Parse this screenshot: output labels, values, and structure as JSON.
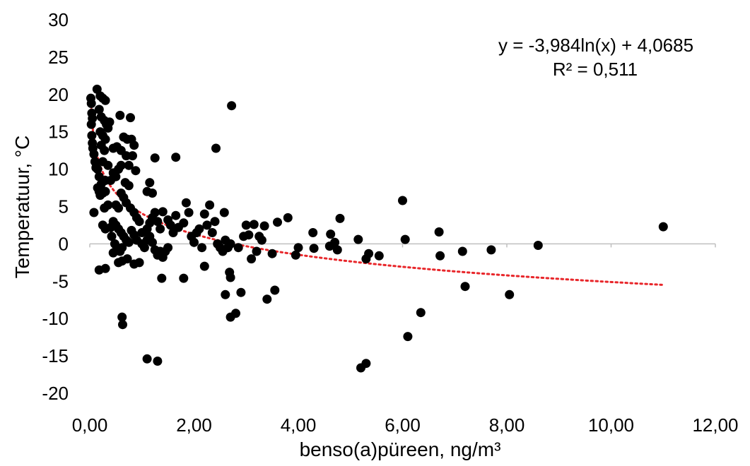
{
  "chart_data": {
    "type": "scatter",
    "xlabel": "benso(a)püreen, ng/m³",
    "ylabel": "Temperatuur, °C",
    "xlim": [
      0,
      12
    ],
    "ylim": [
      -20,
      30
    ],
    "x_ticks": [
      "0,00",
      "2,00",
      "4,00",
      "6,00",
      "8,00",
      "10,00",
      "12,00"
    ],
    "y_ticks": [
      "-20",
      "-15",
      "-10",
      "-5",
      "0",
      "5",
      "10",
      "15",
      "20",
      "25",
      "30"
    ],
    "grid": false,
    "marker_color": "#000000",
    "trendline": {
      "type": "logarithmic",
      "a": -3.984,
      "b": 4.0685,
      "x_range": [
        0.03,
        11.0
      ],
      "color": "#e8262a",
      "equation_label": "y = -3,984ln(x) + 4,0685",
      "r2_label": "R² = 0,511"
    },
    "series": [
      {
        "points": [
          [
            0.02,
            19.5
          ],
          [
            0.03,
            18.8
          ],
          [
            0.04,
            17.5
          ],
          [
            0.05,
            16.8
          ],
          [
            0.03,
            16.0
          ],
          [
            0.04,
            14.5
          ],
          [
            0.05,
            13.5
          ],
          [
            0.06,
            12.8
          ],
          [
            0.08,
            12.0
          ],
          [
            0.1,
            11.0
          ],
          [
            0.12,
            10.2
          ],
          [
            0.15,
            10.0
          ],
          [
            0.08,
            4.2
          ],
          [
            0.15,
            7.5
          ],
          [
            0.18,
            7.0
          ],
          [
            0.2,
            6.5
          ],
          [
            0.25,
            6.8
          ],
          [
            0.3,
            7.0
          ],
          [
            0.28,
            4.8
          ],
          [
            0.35,
            5.2
          ],
          [
            0.18,
            -3.5
          ],
          [
            0.3,
            -3.3
          ],
          [
            0.14,
            20.7
          ],
          [
            0.2,
            19.8
          ],
          [
            0.25,
            19.5
          ],
          [
            0.3,
            19.2
          ],
          [
            0.18,
            18.0
          ],
          [
            0.22,
            17.0
          ],
          [
            0.28,
            16.5
          ],
          [
            0.32,
            16.0
          ],
          [
            0.35,
            15.5
          ],
          [
            0.38,
            16.3
          ],
          [
            0.2,
            15.0
          ],
          [
            0.25,
            14.5
          ],
          [
            0.3,
            14.0
          ],
          [
            0.22,
            13.2
          ],
          [
            0.28,
            12.5
          ],
          [
            0.25,
            11.0
          ],
          [
            0.35,
            10.5
          ],
          [
            0.18,
            9.0
          ],
          [
            0.3,
            8.5
          ],
          [
            0.22,
            8.0
          ],
          [
            0.4,
            8.5
          ],
          [
            0.45,
            9.5
          ],
          [
            0.5,
            9.0
          ],
          [
            0.55,
            10.0
          ],
          [
            0.6,
            10.5
          ],
          [
            0.45,
            12.8
          ],
          [
            0.52,
            13.0
          ],
          [
            0.58,
            17.2
          ],
          [
            0.65,
            14.3
          ],
          [
            0.72,
            14.0
          ],
          [
            0.78,
            16.9
          ],
          [
            0.8,
            14.0
          ],
          [
            0.85,
            13.2
          ],
          [
            0.6,
            12.5
          ],
          [
            0.7,
            11.8
          ],
          [
            0.75,
            10.5
          ],
          [
            0.82,
            11.8
          ],
          [
            0.88,
            9.8
          ],
          [
            0.68,
            8.2
          ],
          [
            0.75,
            7.8
          ],
          [
            0.6,
            6.8
          ],
          [
            0.65,
            6.2
          ],
          [
            0.7,
            5.5
          ],
          [
            0.5,
            5.2
          ],
          [
            0.55,
            4.8
          ],
          [
            0.78,
            4.8
          ],
          [
            0.85,
            4.2
          ],
          [
            0.9,
            3.5
          ],
          [
            0.95,
            3.0
          ],
          [
            0.45,
            3.0
          ],
          [
            0.5,
            2.5
          ],
          [
            0.55,
            2.0
          ],
          [
            0.6,
            1.5
          ],
          [
            0.65,
            1.0
          ],
          [
            0.7,
            0.5
          ],
          [
            0.75,
            0.2
          ],
          [
            0.8,
            1.8
          ],
          [
            0.85,
            1.2
          ],
          [
            0.4,
            2.2
          ],
          [
            0.3,
            2.0
          ],
          [
            0.25,
            2.5
          ],
          [
            0.42,
            1.0
          ],
          [
            0.48,
            0.0
          ],
          [
            0.52,
            -0.5
          ],
          [
            0.58,
            -1.0
          ],
          [
            0.62,
            -0.5
          ],
          [
            0.45,
            -1.2
          ],
          [
            0.55,
            -2.5
          ],
          [
            0.62,
            -2.3
          ],
          [
            0.72,
            -2.0
          ],
          [
            0.85,
            -2.7
          ],
          [
            0.95,
            -2.5
          ],
          [
            0.62,
            -9.8
          ],
          [
            0.63,
            -10.8
          ],
          [
            0.9,
            0.5
          ],
          [
            1.0,
            0.0
          ],
          [
            1.05,
            -0.5
          ],
          [
            1.1,
            0.5
          ],
          [
            1.15,
            1.0
          ],
          [
            1.2,
            0.2
          ],
          [
            1.25,
            -0.8
          ],
          [
            1.3,
            -1.5
          ],
          [
            1.35,
            -1.0
          ],
          [
            1.4,
            -1.8
          ],
          [
            1.45,
            -1.0
          ],
          [
            1.5,
            -0.5
          ],
          [
            1.0,
            1.5
          ],
          [
            1.1,
            2.0
          ],
          [
            1.15,
            2.8
          ],
          [
            1.2,
            3.5
          ],
          [
            1.25,
            4.2
          ],
          [
            1.3,
            3.0
          ],
          [
            1.35,
            2.0
          ],
          [
            1.4,
            4.3
          ],
          [
            1.5,
            3.2
          ],
          [
            1.55,
            2.5
          ],
          [
            1.6,
            1.5
          ],
          [
            1.65,
            3.8
          ],
          [
            1.7,
            2.2
          ],
          [
            1.1,
            7.0
          ],
          [
            1.15,
            8.2
          ],
          [
            1.2,
            6.8
          ],
          [
            1.25,
            11.5
          ],
          [
            1.65,
            11.6
          ],
          [
            1.1,
            -15.4
          ],
          [
            1.3,
            -15.7
          ],
          [
            1.38,
            -4.6
          ],
          [
            1.8,
            -4.6
          ],
          [
            1.8,
            2.8
          ],
          [
            1.85,
            5.5
          ],
          [
            1.9,
            4.2
          ],
          [
            1.95,
            1.0
          ],
          [
            2.0,
            0.2
          ],
          [
            2.05,
            1.5
          ],
          [
            2.1,
            2.0
          ],
          [
            2.15,
            -0.5
          ],
          [
            2.2,
            4.0
          ],
          [
            2.25,
            2.5
          ],
          [
            2.3,
            5.2
          ],
          [
            2.35,
            1.5
          ],
          [
            2.4,
            3.0
          ],
          [
            2.42,
            12.8
          ],
          [
            2.45,
            0.0
          ],
          [
            2.5,
            -0.5
          ],
          [
            2.55,
            -1.0
          ],
          [
            2.6,
            0.5
          ],
          [
            2.65,
            -0.5
          ],
          [
            2.7,
            0.0
          ],
          [
            2.58,
            4.2
          ],
          [
            2.72,
            18.5
          ],
          [
            2.2,
            -3.0
          ],
          [
            2.6,
            -6.8
          ],
          [
            2.68,
            -3.8
          ],
          [
            2.7,
            -4.5
          ],
          [
            2.7,
            -9.8
          ],
          [
            2.8,
            -9.3
          ],
          [
            2.9,
            -6.5
          ],
          [
            2.85,
            -0.5
          ],
          [
            2.95,
            1.0
          ],
          [
            3.0,
            2.5
          ],
          [
            3.05,
            1.2
          ],
          [
            3.1,
            -2.0
          ],
          [
            3.15,
            2.6
          ],
          [
            3.2,
            -1.0
          ],
          [
            3.25,
            1.0
          ],
          [
            3.3,
            0.5
          ],
          [
            3.35,
            2.4
          ],
          [
            3.4,
            -7.4
          ],
          [
            3.5,
            -1.3
          ],
          [
            3.55,
            -6.2
          ],
          [
            3.6,
            2.9
          ],
          [
            3.8,
            3.5
          ],
          [
            3.95,
            -1.5
          ],
          [
            4.0,
            -0.5
          ],
          [
            4.28,
            1.5
          ],
          [
            4.3,
            -0.6
          ],
          [
            4.6,
            -0.3
          ],
          [
            4.62,
            1.3
          ],
          [
            4.7,
            0.2
          ],
          [
            4.75,
            -0.8
          ],
          [
            4.8,
            3.4
          ],
          [
            5.15,
            0.6
          ],
          [
            5.2,
            -16.6
          ],
          [
            5.3,
            -16.0
          ],
          [
            5.3,
            -2.0
          ],
          [
            5.35,
            -1.3
          ],
          [
            5.55,
            -1.6
          ],
          [
            6.0,
            5.8
          ],
          [
            6.05,
            0.6
          ],
          [
            6.1,
            -12.4
          ],
          [
            6.35,
            -9.2
          ],
          [
            6.7,
            1.6
          ],
          [
            6.72,
            -1.6
          ],
          [
            7.15,
            -1.0
          ],
          [
            7.2,
            -5.7
          ],
          [
            7.7,
            -0.8
          ],
          [
            8.05,
            -6.8
          ],
          [
            8.6,
            -0.2
          ],
          [
            11.0,
            2.3
          ]
        ]
      }
    ]
  }
}
